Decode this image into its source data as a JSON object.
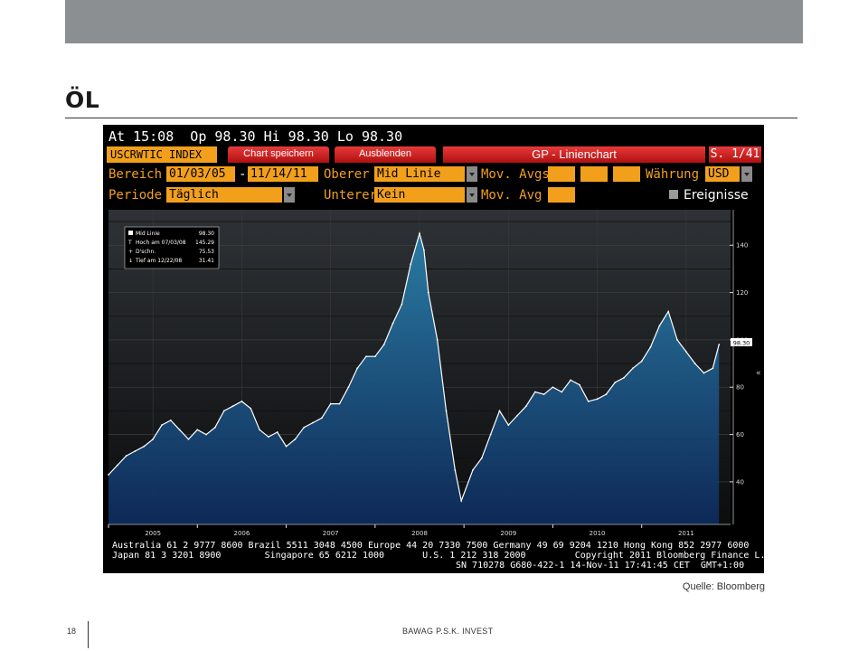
{
  "slide": {
    "title": "ÖL",
    "source": "Quelle: Bloomberg",
    "page_number": "18",
    "brand": "BAWAG P.S.K. INVEST"
  },
  "terminal": {
    "quote_line": "At 15:08  Op 98.30 Hi 98.30 Lo 98.30",
    "ticker": "USCRWTIC INDEX",
    "tab_save": "Chart speichern",
    "tab_hide": "Ausblenden",
    "chart_name": "GP - Linienchart",
    "page": "S. 1/41",
    "row1": {
      "range_label": "Bereich",
      "start_date": "01/03/05",
      "dash": "-",
      "end_date": "11/14/11",
      "upper_label": "Oberer",
      "upper_value": "Mid Linie",
      "mov_avgs_label": "Mov. Avgs",
      "currency_label": "Währung",
      "currency_value": "USD"
    },
    "row2": {
      "period_label": "Periode",
      "period_value": "Täglich",
      "lower_label": "Unterer",
      "lower_value": "Kein",
      "mov_avg_label": "Mov. Avg",
      "events_label": "Ereignisse"
    },
    "legend": {
      "mid_label": "Mid Linie",
      "mid_value": "98.30",
      "high_label": "Hoch am 07/03/08",
      "high_value": "145.29",
      "avg_label": "D'schn.",
      "avg_value": "75.53",
      "low_label": "Tief am 12/22/08",
      "low_value": "31.41"
    },
    "price_tag": "98.30",
    "footer_line1": "Australia 61 2 9777 8600 Brazil 5511 3048 4500 Europe 44 20 7330 7500 Germany 49 69 9204 1210 Hong Kong 852 2977 6000",
    "footer_line2": "Japan 81 3 3201 8900        Singapore 65 6212 1000       U.S. 1 212 318 2000         Copyright 2011 Bloomberg Finance L.P.",
    "footer_line3": "SN 710278 G680-422-1 14-Nov-11 17:41:45 CET  GMT+1:00",
    "colors": {
      "orange": "#f2a01c",
      "red_tab": "#c81e1e",
      "area_top": "#2a7fa8",
      "area_bottom": "#0e2a5a",
      "line": "#ffffff"
    }
  },
  "chart_data": {
    "type": "area",
    "title": "",
    "xlabel": "",
    "ylabel": "",
    "x_tick_labels": [
      "2005",
      "2006",
      "2007",
      "2008",
      "2009",
      "2010",
      "2011"
    ],
    "y_ticks": [
      40,
      60,
      80,
      100,
      120,
      140
    ],
    "ylim": [
      22,
      155
    ],
    "x": [
      2005.0,
      2005.1,
      2005.2,
      2005.3,
      2005.4,
      2005.5,
      2005.6,
      2005.7,
      2005.8,
      2005.9,
      2006.0,
      2006.1,
      2006.2,
      2006.3,
      2006.4,
      2006.5,
      2006.6,
      2006.7,
      2006.8,
      2006.9,
      2007.0,
      2007.1,
      2007.2,
      2007.3,
      2007.4,
      2007.5,
      2007.6,
      2007.7,
      2007.8,
      2007.9,
      2008.0,
      2008.1,
      2008.2,
      2008.3,
      2008.4,
      2008.5,
      2008.55,
      2008.6,
      2008.7,
      2008.8,
      2008.9,
      2008.97,
      2009.1,
      2009.2,
      2009.3,
      2009.4,
      2009.5,
      2009.6,
      2009.7,
      2009.8,
      2009.9,
      2010.0,
      2010.1,
      2010.2,
      2010.3,
      2010.4,
      2010.5,
      2010.6,
      2010.7,
      2010.8,
      2010.9,
      2011.0,
      2011.1,
      2011.2,
      2011.3,
      2011.4,
      2011.5,
      2011.6,
      2011.7,
      2011.8,
      2011.87
    ],
    "series": [
      {
        "name": "Mid Linie",
        "values": [
          43,
          47,
          51,
          53,
          55,
          58,
          64,
          66,
          62,
          58,
          62,
          60,
          63,
          70,
          72,
          74,
          71,
          62,
          59,
          61,
          55,
          58,
          63,
          65,
          67,
          73,
          73,
          80,
          88,
          93,
          93,
          98,
          107,
          115,
          132,
          145,
          138,
          120,
          100,
          70,
          45,
          32,
          45,
          50,
          60,
          70,
          64,
          68,
          72,
          78,
          77,
          80,
          78,
          83,
          81,
          74,
          75,
          77,
          82,
          84,
          88,
          91,
          97,
          106,
          112,
          100,
          95,
          90,
          86,
          88,
          98
        ]
      }
    ],
    "summary": {
      "mid": 98.3,
      "high": 145.29,
      "high_date": "07/03/08",
      "average": 75.53,
      "low": 31.41,
      "low_date": "12/22/08"
    },
    "grid": true,
    "legend": "top-left"
  }
}
